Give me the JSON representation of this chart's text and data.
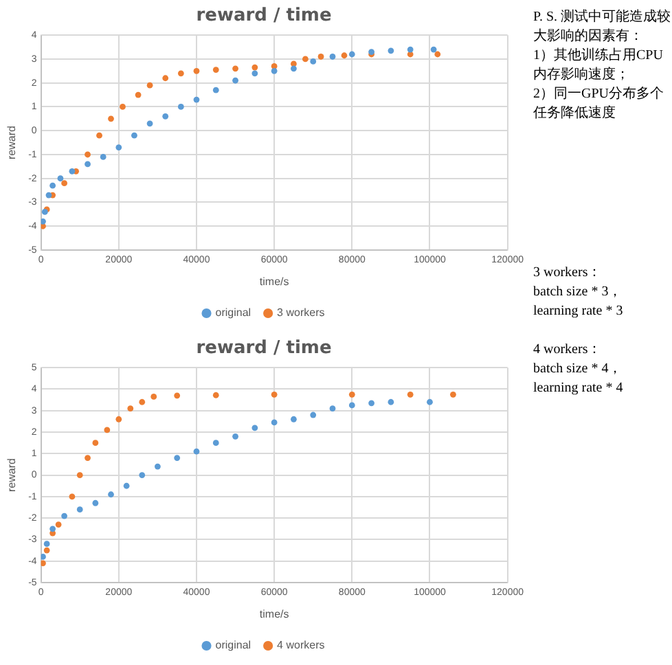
{
  "chart_data": [
    {
      "type": "scatter",
      "title": "reward / time",
      "xlabel": "time/s",
      "ylabel": "reward",
      "xlim": [
        0,
        120000
      ],
      "xticks": [
        0,
        20000,
        40000,
        60000,
        80000,
        100000,
        120000
      ],
      "ylim": [
        -5,
        4
      ],
      "yticks": [
        -5,
        -4,
        -3,
        -2,
        -1,
        0,
        1,
        2,
        3,
        4
      ],
      "grid": true,
      "legend": "bottom",
      "marker": "circle",
      "series": [
        {
          "name": "original",
          "color": "#5b9bd5",
          "x": [
            500,
            1000,
            2000,
            3000,
            5000,
            8000,
            12000,
            16000,
            20000,
            24000,
            28000,
            32000,
            36000,
            40000,
            45000,
            50000,
            55000,
            60000,
            65000,
            70000,
            75000,
            80000,
            85000,
            90000,
            95000,
            101000
          ],
          "values": [
            -3.8,
            -3.4,
            -2.7,
            -2.3,
            -2.0,
            -1.7,
            -1.4,
            -1.1,
            -0.7,
            -0.2,
            0.3,
            0.6,
            1.0,
            1.3,
            1.7,
            2.1,
            2.4,
            2.5,
            2.6,
            2.9,
            3.1,
            3.2,
            3.3,
            3.35,
            3.4,
            3.4
          ]
        },
        {
          "name": "3 workers",
          "color": "#ed7d31",
          "x": [
            500,
            1500,
            3000,
            6000,
            9000,
            12000,
            15000,
            18000,
            21000,
            25000,
            28000,
            32000,
            36000,
            40000,
            45000,
            50000,
            55000,
            60000,
            65000,
            68000,
            72000,
            78000,
            85000,
            95000,
            102000
          ],
          "values": [
            -4.0,
            -3.3,
            -2.7,
            -2.2,
            -1.7,
            -1.0,
            -0.2,
            0.5,
            1.0,
            1.5,
            1.9,
            2.2,
            2.4,
            2.5,
            2.55,
            2.6,
            2.65,
            2.7,
            2.8,
            3.0,
            3.1,
            3.15,
            3.2,
            3.2,
            3.2
          ]
        }
      ],
      "annotations": [
        "P. S. 测试中可能造成较大影响的因素有：\n1）其他训练占用CPU内存影响速度；\n2）同一GPU分布多个任务降低速度",
        "3 workers：\nbatch size * 3，\nlearning rate * 3"
      ]
    },
    {
      "type": "scatter",
      "title": "reward / time",
      "xlabel": "time/s",
      "ylabel": "reward",
      "xlim": [
        0,
        120000
      ],
      "xticks": [
        0,
        20000,
        40000,
        60000,
        80000,
        100000,
        120000
      ],
      "ylim": [
        -5,
        5
      ],
      "yticks": [
        -5,
        -4,
        -3,
        -2,
        -1,
        0,
        1,
        2,
        3,
        4,
        5
      ],
      "grid": true,
      "legend": "bottom",
      "marker": "circle",
      "series": [
        {
          "name": "original",
          "color": "#5b9bd5",
          "x": [
            500,
            1500,
            3000,
            6000,
            10000,
            14000,
            18000,
            22000,
            26000,
            30000,
            35000,
            40000,
            45000,
            50000,
            55000,
            60000,
            65000,
            70000,
            75000,
            80000,
            85000,
            90000,
            100000
          ],
          "values": [
            -3.8,
            -3.2,
            -2.5,
            -1.9,
            -1.6,
            -1.3,
            -0.9,
            -0.5,
            0.0,
            0.4,
            0.8,
            1.1,
            1.5,
            1.8,
            2.2,
            2.45,
            2.6,
            2.8,
            3.1,
            3.25,
            3.35,
            3.4,
            3.4
          ]
        },
        {
          "name": "4 workers",
          "color": "#ed7d31",
          "x": [
            500,
            1500,
            3000,
            4500,
            8000,
            10000,
            12000,
            14000,
            17000,
            20000,
            23000,
            26000,
            29000,
            35000,
            45000,
            60000,
            80000,
            95000,
            106000
          ],
          "values": [
            -4.1,
            -3.5,
            -2.7,
            -2.3,
            -1.0,
            0.0,
            0.8,
            1.5,
            2.1,
            2.6,
            3.1,
            3.4,
            3.65,
            3.7,
            3.72,
            3.75,
            3.75,
            3.75,
            3.75
          ]
        }
      ],
      "annotations": [
        "4 workers：\nbatch size * 4，\nlearning rate * 4"
      ]
    }
  ]
}
